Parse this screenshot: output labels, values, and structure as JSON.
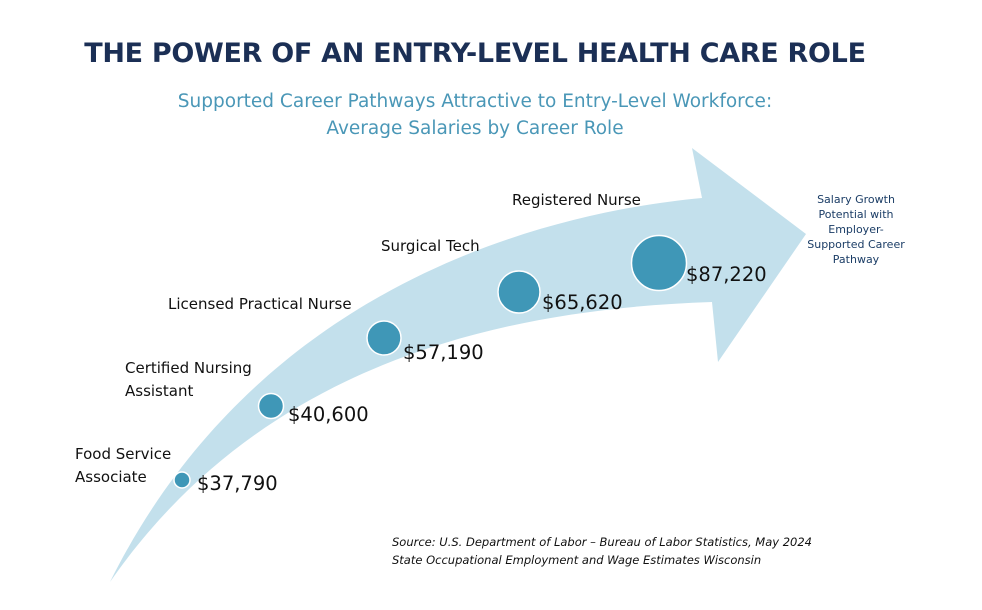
{
  "title": "THE POWER OF AN ENTRY-LEVEL HEALTH CARE ROLE",
  "subtitle": {
    "line1": "Supported Career Pathways Attractive to Entry-Level Workforce:",
    "line2": "Average Salaries by Career Role"
  },
  "roles": [
    {
      "name_line1": "Food Service",
      "name_line2": "Associate",
      "salary": "$37,790"
    },
    {
      "name_line1": "Certified Nursing",
      "name_line2": "Assistant",
      "salary": "$40,600"
    },
    {
      "name_line1": "Licensed Practical Nurse",
      "name_line2": "",
      "salary": "$57,190"
    },
    {
      "name_line1": "Surgical Tech",
      "name_line2": "",
      "salary": "$65,620"
    },
    {
      "name_line1": "Registered Nurse",
      "name_line2": "",
      "salary": "$87,220"
    }
  ],
  "growth_note": {
    "line1": "Salary Growth",
    "line2": "Potential with",
    "line3": "Employer-",
    "line4": "Supported Career",
    "line5": "Pathway"
  },
  "source": {
    "line1": "Source: U.S. Department of Labor – Bureau of Labor Statistics, May 2024",
    "line2": "State Occupational Employment and Wage Estimates Wisconsin"
  },
  "colors": {
    "title": "#1b2f55",
    "subtitle": "#4a97b7",
    "arrow": "#c3e0ec",
    "bubble": "#3f97b7",
    "bubble_edge": "#ffffff"
  }
}
